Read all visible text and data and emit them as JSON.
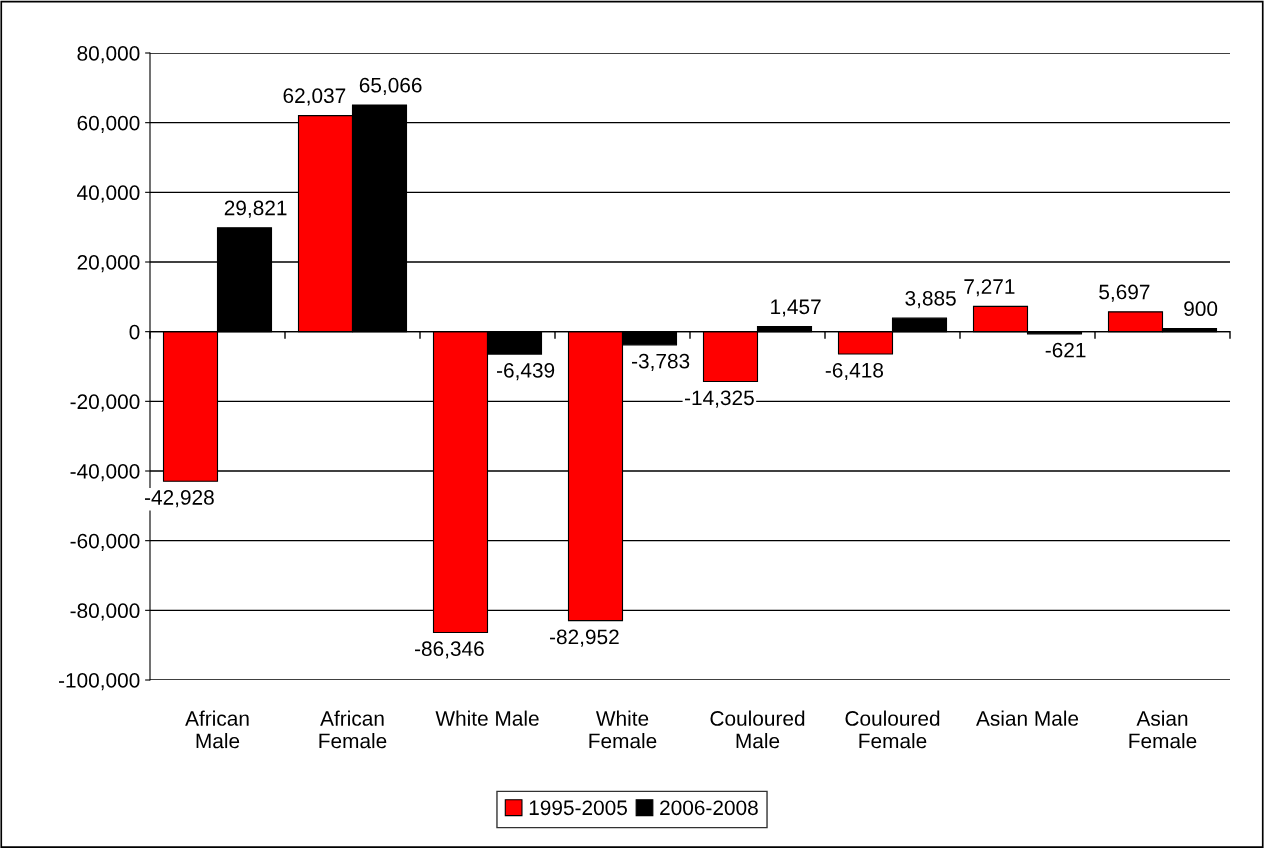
{
  "chart_data": {
    "type": "bar",
    "categories": [
      "African Male",
      "African Female",
      "White Male",
      "White Female",
      "Couloured Male",
      "Couloured Female",
      "Asian Male",
      "Asian Female"
    ],
    "series": [
      {
        "name": "1995-2005",
        "color": "#ff0000",
        "values": [
          -42928,
          62037,
          -86346,
          -82952,
          -14325,
          -6418,
          7271,
          5697
        ],
        "value_labels": [
          "-42,928",
          "62,037",
          "-86,346",
          "-82,952",
          "-14,325",
          "-6,418",
          "7,271",
          "5,697"
        ]
      },
      {
        "name": "2006-2008",
        "color": "#000000",
        "values": [
          29821,
          65066,
          -6439,
          -3783,
          1457,
          3885,
          -621,
          900
        ],
        "value_labels": [
          "29,821",
          "65,066",
          "-6,439",
          "-3,783",
          "1,457",
          "3,885",
          "-621",
          "900"
        ]
      }
    ],
    "ylim": [
      -100000,
      80000
    ],
    "yticks": [
      {
        "value": -100000,
        "label": "-100,000"
      },
      {
        "value": -80000,
        "label": "-80,000"
      },
      {
        "value": -60000,
        "label": "-60,000"
      },
      {
        "value": -40000,
        "label": "-40,000"
      },
      {
        "value": -20000,
        "label": "-20,000"
      },
      0,
      {
        "value": 20000,
        "label": "20,000"
      },
      {
        "value": 40000,
        "label": "40,000"
      },
      {
        "value": 60000,
        "label": "60,000"
      },
      {
        "value": 80000,
        "label": "80,000"
      }
    ],
    "grid": "y",
    "legend": "bottom"
  }
}
